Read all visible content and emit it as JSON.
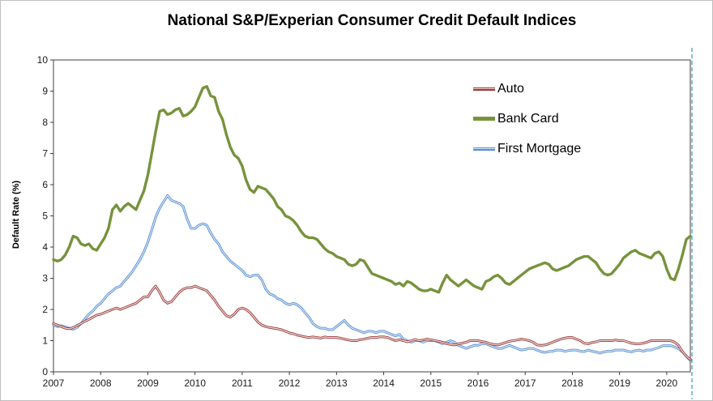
{
  "chart_data": {
    "type": "line",
    "title": "National S&P/Experian Consumer Credit Default Indices",
    "xlabel": "",
    "ylabel": "Default Rate (%)",
    "ylim": [
      0,
      10
    ],
    "y_ticks": [
      0,
      1,
      2,
      3,
      4,
      5,
      6,
      7,
      8,
      9,
      10
    ],
    "x_tick_labels": [
      "2007",
      "2008",
      "2009",
      "2010",
      "2011",
      "2012",
      "2013",
      "2014",
      "2015",
      "2016",
      "2017",
      "2018",
      "2019",
      "2020"
    ],
    "x_interval": "monthly",
    "x_start": "2007-01",
    "x_end": "2020-07",
    "grid": false,
    "legend_position": "inside-top-right",
    "plot_border_color": "#3f3f3f",
    "page_break_color": "#4bacc6",
    "series": [
      {
        "name": "Auto",
        "color": "#953735",
        "inner_color": "#f2dcdb",
        "line_width": 3,
        "values": [
          1.55,
          1.5,
          1.45,
          1.4,
          1.38,
          1.42,
          1.48,
          1.55,
          1.62,
          1.68,
          1.75,
          1.82,
          1.85,
          1.9,
          1.95,
          2.0,
          2.05,
          2.0,
          2.05,
          2.1,
          2.15,
          2.2,
          2.3,
          2.4,
          2.4,
          2.6,
          2.75,
          2.55,
          2.3,
          2.2,
          2.25,
          2.4,
          2.55,
          2.65,
          2.7,
          2.7,
          2.75,
          2.7,
          2.65,
          2.6,
          2.45,
          2.3,
          2.1,
          1.95,
          1.8,
          1.75,
          1.85,
          2.0,
          2.05,
          2.0,
          1.9,
          1.75,
          1.6,
          1.5,
          1.45,
          1.42,
          1.4,
          1.38,
          1.35,
          1.3,
          1.25,
          1.22,
          1.18,
          1.15,
          1.12,
          1.1,
          1.12,
          1.1,
          1.08,
          1.12,
          1.1,
          1.1,
          1.1,
          1.08,
          1.05,
          1.02,
          1.0,
          1.0,
          1.03,
          1.05,
          1.08,
          1.1,
          1.1,
          1.12,
          1.12,
          1.1,
          1.05,
          1.0,
          1.03,
          1.0,
          0.96,
          1.0,
          1.04,
          1.0,
          1.02,
          1.05,
          1.03,
          1.0,
          0.98,
          0.95,
          0.9,
          0.88,
          0.86,
          0.9,
          0.92,
          0.95,
          1.0,
          1.0,
          1.0,
          0.97,
          0.95,
          0.9,
          0.88,
          0.86,
          0.9,
          0.94,
          0.98,
          1.0,
          1.02,
          1.05,
          1.03,
          1.0,
          0.95,
          0.86,
          0.85,
          0.86,
          0.9,
          0.95,
          1.0,
          1.05,
          1.08,
          1.1,
          1.1,
          1.05,
          1.0,
          0.92,
          0.9,
          0.94,
          0.96,
          1.0,
          1.0,
          1.0,
          1.0,
          1.02,
          1.0,
          1.0,
          0.96,
          0.92,
          0.9,
          0.9,
          0.92,
          0.95,
          1.0,
          1.0,
          1.0,
          1.0,
          1.0,
          1.0,
          0.95,
          0.85,
          0.65,
          0.5,
          0.4
        ]
      },
      {
        "name": "Bank Card",
        "color": "#77933c",
        "inner_color": null,
        "line_width": 3.4,
        "values": [
          3.6,
          3.55,
          3.6,
          3.75,
          4.0,
          4.35,
          4.3,
          4.1,
          4.05,
          4.1,
          3.95,
          3.9,
          4.1,
          4.3,
          4.6,
          5.2,
          5.35,
          5.15,
          5.3,
          5.4,
          5.3,
          5.2,
          5.5,
          5.8,
          6.3,
          7.0,
          7.7,
          8.35,
          8.4,
          8.25,
          8.3,
          8.4,
          8.45,
          8.2,
          8.25,
          8.35,
          8.5,
          8.8,
          9.1,
          9.15,
          8.85,
          8.8,
          8.35,
          8.1,
          7.6,
          7.2,
          6.95,
          6.85,
          6.6,
          6.15,
          5.85,
          5.75,
          5.95,
          5.9,
          5.85,
          5.7,
          5.55,
          5.3,
          5.2,
          5.0,
          4.95,
          4.85,
          4.7,
          4.5,
          4.35,
          4.3,
          4.3,
          4.25,
          4.1,
          3.95,
          3.85,
          3.8,
          3.7,
          3.65,
          3.6,
          3.45,
          3.4,
          3.45,
          3.6,
          3.55,
          3.35,
          3.15,
          3.1,
          3.05,
          3.0,
          2.95,
          2.9,
          2.8,
          2.85,
          2.75,
          2.9,
          2.85,
          2.75,
          2.65,
          2.6,
          2.6,
          2.65,
          2.6,
          2.55,
          2.85,
          3.1,
          2.95,
          2.85,
          2.75,
          2.85,
          2.95,
          2.85,
          2.75,
          2.7,
          2.65,
          2.9,
          2.95,
          3.05,
          3.1,
          3.0,
          2.85,
          2.8,
          2.9,
          3.0,
          3.1,
          3.2,
          3.3,
          3.35,
          3.4,
          3.45,
          3.5,
          3.45,
          3.3,
          3.25,
          3.3,
          3.35,
          3.4,
          3.5,
          3.6,
          3.65,
          3.7,
          3.7,
          3.6,
          3.5,
          3.3,
          3.15,
          3.1,
          3.15,
          3.3,
          3.45,
          3.65,
          3.75,
          3.85,
          3.9,
          3.8,
          3.75,
          3.7,
          3.65,
          3.8,
          3.85,
          3.7,
          3.3,
          3.0,
          2.95,
          3.3,
          3.75,
          4.25,
          4.35
        ]
      },
      {
        "name": "First Mortgage",
        "color": "#558ed5",
        "inner_color": "#dce6f2",
        "line_width": 3,
        "values": [
          1.5,
          1.45,
          1.48,
          1.44,
          1.4,
          1.36,
          1.42,
          1.55,
          1.7,
          1.85,
          1.95,
          2.1,
          2.2,
          2.35,
          2.5,
          2.6,
          2.7,
          2.75,
          2.9,
          3.05,
          3.2,
          3.4,
          3.6,
          3.85,
          4.15,
          4.55,
          4.95,
          5.25,
          5.45,
          5.65,
          5.5,
          5.45,
          5.4,
          5.3,
          4.9,
          4.6,
          4.6,
          4.7,
          4.75,
          4.7,
          4.45,
          4.25,
          4.1,
          3.85,
          3.7,
          3.55,
          3.45,
          3.35,
          3.25,
          3.1,
          3.05,
          3.1,
          3.1,
          2.95,
          2.65,
          2.5,
          2.45,
          2.35,
          2.3,
          2.2,
          2.15,
          2.2,
          2.15,
          2.05,
          1.9,
          1.75,
          1.55,
          1.45,
          1.4,
          1.4,
          1.35,
          1.35,
          1.45,
          1.55,
          1.65,
          1.5,
          1.4,
          1.35,
          1.3,
          1.25,
          1.3,
          1.3,
          1.25,
          1.3,
          1.3,
          1.25,
          1.2,
          1.15,
          1.2,
          1.05,
          1.0,
          0.95,
          1.0,
          1.0,
          0.95,
          1.0,
          1.0,
          1.0,
          0.95,
          0.9,
          0.95,
          1.0,
          0.95,
          0.85,
          0.8,
          0.75,
          0.8,
          0.85,
          0.85,
          0.9,
          0.9,
          0.85,
          0.8,
          0.75,
          0.75,
          0.8,
          0.85,
          0.8,
          0.75,
          0.7,
          0.72,
          0.75,
          0.75,
          0.7,
          0.65,
          0.62,
          0.65,
          0.66,
          0.7,
          0.7,
          0.66,
          0.68,
          0.7,
          0.7,
          0.66,
          0.65,
          0.7,
          0.66,
          0.64,
          0.6,
          0.64,
          0.66,
          0.66,
          0.7,
          0.7,
          0.7,
          0.66,
          0.64,
          0.68,
          0.7,
          0.66,
          0.7,
          0.7,
          0.74,
          0.78,
          0.84,
          0.84,
          0.84,
          0.8,
          0.74,
          0.64,
          0.5,
          0.36
        ]
      }
    ]
  }
}
